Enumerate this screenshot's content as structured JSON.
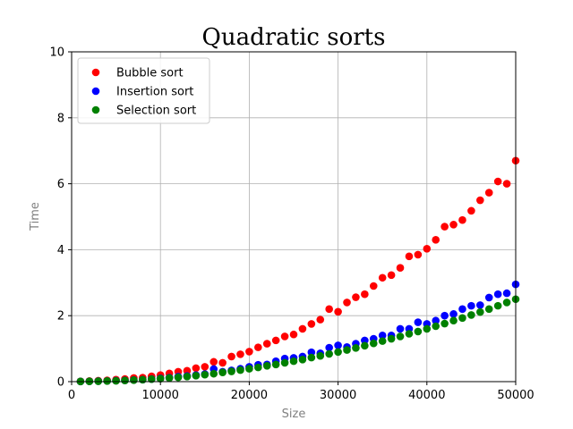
{
  "chart_data": {
    "type": "scatter",
    "title": "Quadratic sorts",
    "xlabel": "Size",
    "ylabel": "Time",
    "xlim": [
      0,
      50000
    ],
    "ylim": [
      0,
      10
    ],
    "xticks": [
      0,
      10000,
      20000,
      30000,
      40000,
      50000
    ],
    "xtick_labels": [
      "0",
      "10000",
      "20000",
      "30000",
      "40000",
      "50000"
    ],
    "yticks": [
      0,
      2,
      4,
      6,
      8,
      10
    ],
    "ytick_labels": [
      "0",
      "2",
      "4",
      "6",
      "8",
      "10"
    ],
    "grid": true,
    "legend_position": "top-left",
    "x": [
      1000,
      2000,
      3000,
      4000,
      5000,
      6000,
      7000,
      8000,
      9000,
      10000,
      11000,
      12000,
      13000,
      14000,
      15000,
      16000,
      17000,
      18000,
      19000,
      20000,
      21000,
      22000,
      23000,
      24000,
      25000,
      26000,
      27000,
      28000,
      29000,
      30000,
      31000,
      32000,
      33000,
      34000,
      35000,
      36000,
      37000,
      38000,
      39000,
      40000,
      41000,
      42000,
      43000,
      44000,
      45000,
      46000,
      47000,
      48000,
      49000,
      50000
    ],
    "series": [
      {
        "name": "Bubble sort",
        "color": "#ff0000",
        "values": [
          0.01,
          0.02,
          0.03,
          0.04,
          0.06,
          0.08,
          0.11,
          0.12,
          0.16,
          0.2,
          0.25,
          0.3,
          0.33,
          0.41,
          0.45,
          0.6,
          0.57,
          0.76,
          0.83,
          0.91,
          1.04,
          1.15,
          1.25,
          1.37,
          1.43,
          1.6,
          1.75,
          1.88,
          2.2,
          2.12,
          2.4,
          2.56,
          2.65,
          2.9,
          3.15,
          3.23,
          3.45,
          3.8,
          3.85,
          4.03,
          4.3,
          4.7,
          4.76,
          4.9,
          5.18,
          5.5,
          5.73,
          6.07,
          6.0,
          6.7
        ]
      },
      {
        "name": "Insertion sort",
        "color": "#0000ff",
        "values": [
          0.005,
          0.01,
          0.015,
          0.02,
          0.03,
          0.04,
          0.05,
          0.06,
          0.08,
          0.1,
          0.12,
          0.15,
          0.17,
          0.2,
          0.23,
          0.38,
          0.3,
          0.34,
          0.39,
          0.45,
          0.51,
          0.52,
          0.62,
          0.7,
          0.72,
          0.76,
          0.89,
          0.86,
          1.03,
          1.1,
          1.05,
          1.15,
          1.25,
          1.3,
          1.4,
          1.4,
          1.6,
          1.6,
          1.8,
          1.75,
          1.85,
          2.0,
          2.05,
          2.2,
          2.3,
          2.32,
          2.55,
          2.65,
          2.68,
          2.95
        ]
      },
      {
        "name": "Selection sort",
        "color": "#008000",
        "values": [
          0.005,
          0.008,
          0.012,
          0.018,
          0.025,
          0.035,
          0.045,
          0.058,
          0.075,
          0.09,
          0.11,
          0.13,
          0.155,
          0.18,
          0.21,
          0.24,
          0.28,
          0.31,
          0.35,
          0.39,
          0.43,
          0.48,
          0.52,
          0.57,
          0.62,
          0.67,
          0.73,
          0.78,
          0.84,
          0.9,
          0.96,
          1.02,
          1.09,
          1.16,
          1.23,
          1.3,
          1.37,
          1.45,
          1.52,
          1.6,
          1.68,
          1.76,
          1.85,
          1.93,
          2.02,
          2.11,
          2.2,
          2.3,
          2.4,
          2.5
        ]
      }
    ]
  }
}
